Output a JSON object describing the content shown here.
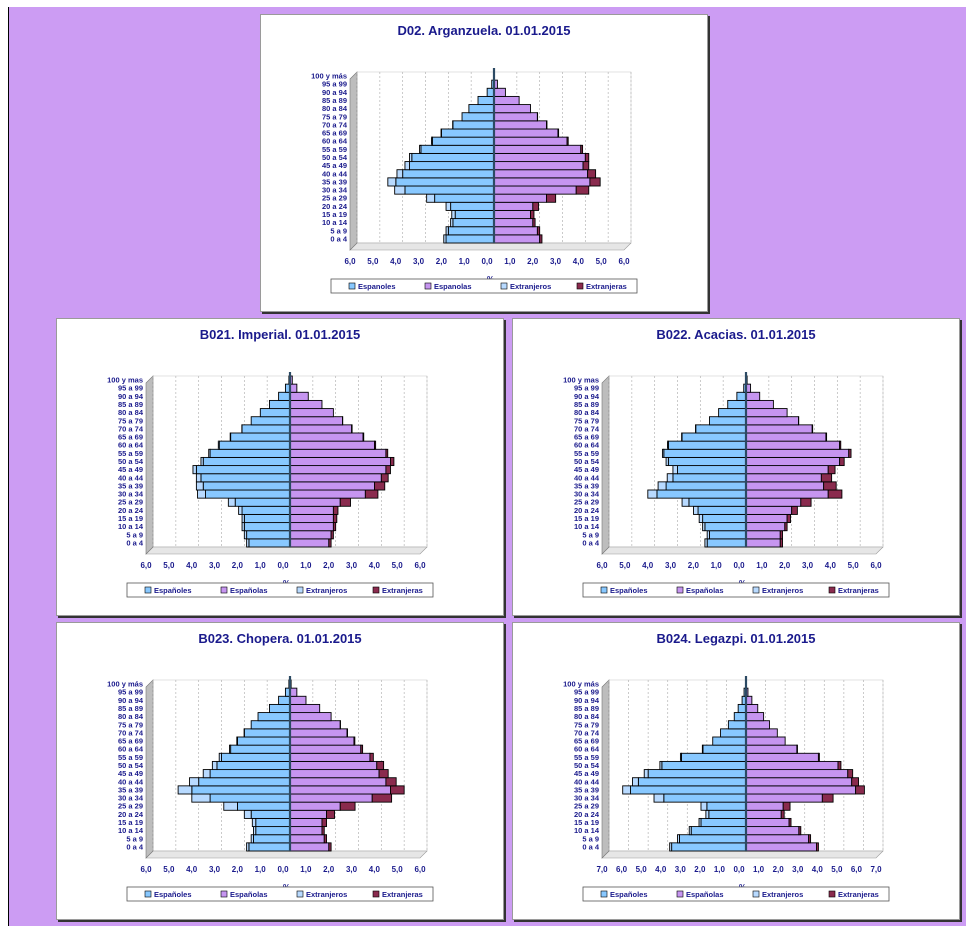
{
  "colors": {
    "espanoles": "#88c8ff",
    "espanolas": "#c695f0",
    "extranjeros": "#b8daff",
    "extranjeras": "#8a2b4e",
    "text": "#1a1a8c",
    "background": "#cc9cf3"
  },
  "chart_data": [
    {
      "type": "bar",
      "title": "D02. Arganzuela. 01.01.2015",
      "xlabel": "%",
      "xlim": [
        -6,
        6
      ],
      "tick_labels": [
        "6,0",
        "5,0",
        "4,0",
        "3,0",
        "2,0",
        "1,0",
        "0,0",
        "1,0",
        "2,0",
        "3,0",
        "4,0",
        "5,0",
        "6,0"
      ],
      "categories": [
        "0 a 4",
        "5 a 9",
        "10 a 14",
        "15 a 19",
        "20 a 24",
        "25 a 29",
        "30 a 34",
        "35 a 39",
        "40 a 44",
        "45 a 49",
        "50 a 54",
        "55 a 59",
        "60 a 64",
        "65 a 69",
        "70 a 74",
        "75 a 79",
        "80 a 84",
        "85 a 89",
        "90 a 94",
        "95 a 99",
        "100 y más"
      ],
      "series": [
        {
          "name": "Españoles",
          "values": [
            2.1,
            2.0,
            1.8,
            1.7,
            1.9,
            2.6,
            3.9,
            4.3,
            4.0,
            3.7,
            3.6,
            3.2,
            2.7,
            2.3,
            1.8,
            1.4,
            1.1,
            0.7,
            0.3,
            0.1,
            0.0
          ]
        },
        {
          "name": "Españolas",
          "values": [
            2.0,
            1.9,
            1.7,
            1.6,
            1.7,
            2.3,
            3.6,
            4.2,
            4.1,
            3.9,
            4.0,
            3.8,
            3.2,
            2.8,
            2.3,
            1.9,
            1.6,
            1.1,
            0.5,
            0.15,
            0.02
          ]
        },
        {
          "name": "Extranjeros",
          "values": [
            0.1,
            0.1,
            0.1,
            0.15,
            0.2,
            0.35,
            0.45,
            0.35,
            0.25,
            0.2,
            0.1,
            0.06,
            0.04,
            0.02,
            0.01,
            0.0,
            0.0,
            0.0,
            0.0,
            0.0,
            0.0
          ]
        },
        {
          "name": "Extranjeras",
          "values": [
            0.1,
            0.1,
            0.1,
            0.15,
            0.25,
            0.4,
            0.55,
            0.45,
            0.35,
            0.25,
            0.15,
            0.08,
            0.05,
            0.03,
            0.02,
            0.01,
            0.0,
            0.0,
            0.0,
            0.0,
            0.0
          ]
        }
      ],
      "category_labels": [
        "0 a 4",
        "5 a 9",
        "10 a 14",
        "15 a 19",
        "20 a 24",
        "25 a 29",
        "30 a 34",
        "35 a 39",
        "40 a 44",
        "45 a 49",
        "50 a 54",
        "55 a 59",
        "60 a 64",
        "65 a 69",
        "70 a 74",
        "75 a 79",
        "80 a 84",
        "85 a 89",
        "90 a 94",
        "95 a 99",
        "100 y más"
      ],
      "legend": [
        "Espanoles",
        "Espanolas",
        "Extranjeros",
        "Extranjeras"
      ]
    },
    {
      "type": "bar",
      "title": "B021. Imperial. 01.01.2015",
      "xlabel": "%",
      "xlim": [
        -6,
        6
      ],
      "tick_labels": [
        "6,0",
        "5,0",
        "4,0",
        "3,0",
        "2,0",
        "1,0",
        "0,0",
        "1,0",
        "2,0",
        "3,0",
        "4,0",
        "5,0",
        "6,0"
      ],
      "categories": [
        "0 a 4",
        "5 a 9",
        "10 a 14",
        "15 a 19",
        "20 a 24",
        "25 a 29",
        "30 a 34",
        "35 a 39",
        "40 a 44",
        "45 a 49",
        "50 a 54",
        "55 a 59",
        "60 a 64",
        "65 a 69",
        "70 a 74",
        "75 a 79",
        "80 a 84",
        "85 a 89",
        "90 a 94",
        "95 a 99",
        "100 y más"
      ],
      "series": [
        {
          "name": "Españoles",
          "values": [
            1.8,
            1.9,
            2.0,
            2.0,
            2.1,
            2.4,
            3.7,
            3.8,
            3.9,
            4.1,
            3.8,
            3.5,
            3.1,
            2.6,
            2.1,
            1.7,
            1.3,
            0.9,
            0.5,
            0.2,
            0.05
          ]
        },
        {
          "name": "Españolas",
          "values": [
            1.7,
            1.8,
            1.9,
            1.9,
            1.9,
            2.2,
            3.3,
            3.7,
            4.0,
            4.2,
            4.4,
            4.2,
            3.7,
            3.2,
            2.7,
            2.3,
            1.9,
            1.4,
            0.8,
            0.3,
            0.1
          ]
        },
        {
          "name": "Extranjeros",
          "values": [
            0.1,
            0.1,
            0.1,
            0.1,
            0.15,
            0.3,
            0.35,
            0.3,
            0.2,
            0.15,
            0.1,
            0.06,
            0.04,
            0.02,
            0.01,
            0.0,
            0.0,
            0.0,
            0.0,
            0.0,
            0.0
          ]
        },
        {
          "name": "Extranjeras",
          "values": [
            0.1,
            0.1,
            0.1,
            0.15,
            0.2,
            0.45,
            0.55,
            0.45,
            0.3,
            0.2,
            0.15,
            0.08,
            0.05,
            0.03,
            0.02,
            0.01,
            0.0,
            0.0,
            0.0,
            0.0,
            0.0
          ]
        }
      ],
      "category_labels": [
        "0 a 4",
        "5 a 9",
        "10 a 14",
        "15 a 19",
        "20 a 24",
        "25 a 29",
        "30 a 34",
        "35 a 39",
        "40 a 44",
        "45 a 49",
        "50 a 54",
        "55 a 59",
        "60 a 64",
        "65 a 69",
        "70 a 74",
        "75 a 79",
        "80 a 84",
        "85 a 89",
        "90 a 94",
        "95 a 99",
        "100 y mas"
      ],
      "legend": [
        "Españoles",
        "Españolas",
        "Extranjeros",
        "Extranjeras"
      ]
    },
    {
      "type": "bar",
      "title": "B022. Acacias. 01.01.2015",
      "xlabel": "%",
      "xlim": [
        -6,
        6
      ],
      "tick_labels": [
        "6,0",
        "5,0",
        "4,0",
        "3,0",
        "2,0",
        "1,0",
        "0,0",
        "1,0",
        "2,0",
        "3,0",
        "4,0",
        "5,0",
        "6,0"
      ],
      "categories": [
        "0 a 4",
        "5 a 9",
        "10 a 14",
        "15 a 19",
        "20 a 24",
        "25 a 29",
        "30 a 34",
        "35 a 39",
        "40 a 44",
        "45 a 49",
        "50 a 54",
        "55 a 59",
        "60 a 64",
        "65 a 69",
        "70 a 74",
        "75 a 79",
        "80 a 84",
        "85 a 89",
        "90 a 94",
        "95 a 99",
        "100 y más"
      ],
      "series": [
        {
          "name": "Españoles",
          "values": [
            1.7,
            1.6,
            1.8,
            1.9,
            2.1,
            2.5,
            3.9,
            3.5,
            3.2,
            3.0,
            3.4,
            3.6,
            3.4,
            2.8,
            2.2,
            1.6,
            1.2,
            0.8,
            0.4,
            0.1,
            0.02
          ]
        },
        {
          "name": "Españolas",
          "values": [
            1.5,
            1.5,
            1.7,
            1.8,
            2.0,
            2.4,
            3.6,
            3.4,
            3.3,
            3.6,
            4.1,
            4.5,
            4.1,
            3.5,
            2.9,
            2.3,
            1.8,
            1.2,
            0.6,
            0.2,
            0.05
          ]
        },
        {
          "name": "Extranjeros",
          "values": [
            0.1,
            0.1,
            0.1,
            0.15,
            0.2,
            0.3,
            0.4,
            0.35,
            0.25,
            0.2,
            0.1,
            0.06,
            0.04,
            0.02,
            0.01,
            0.0,
            0.0,
            0.0,
            0.0,
            0.0,
            0.0
          ]
        },
        {
          "name": "Extranjeras",
          "values": [
            0.1,
            0.1,
            0.1,
            0.15,
            0.25,
            0.45,
            0.6,
            0.55,
            0.45,
            0.3,
            0.2,
            0.1,
            0.05,
            0.03,
            0.02,
            0.01,
            0.0,
            0.0,
            0.0,
            0.0,
            0.0
          ]
        }
      ],
      "category_labels": [
        "0 a 4",
        "5 a 9",
        "10 a 14",
        "15 a 19",
        "20 a 24",
        "25 a 29",
        "30 a 34",
        "35 a 39",
        "40 a 44",
        "45 a 49",
        "50 a 54",
        "55 a 59",
        "60 a 64",
        "65 a 69",
        "70 a 74",
        "75 a 79",
        "80 a 84",
        "85 a 89",
        "90 a 94",
        "95 a 99",
        "100 y mas"
      ],
      "legend": [
        "Españoles",
        "Españolas",
        "Extranjeros",
        "Extranjeras"
      ]
    },
    {
      "type": "bar",
      "title": "B023. Chopera. 01.01.2015",
      "xlabel": "%",
      "xlim": [
        -6,
        6
      ],
      "tick_labels": [
        "6,0",
        "5,0",
        "4,0",
        "3,0",
        "2,0",
        "1,0",
        "0,0",
        "1,0",
        "2,0",
        "3,0",
        "4,0",
        "5,0",
        "6,0"
      ],
      "categories": [
        "0 a 4",
        "5 a 9",
        "10 a 14",
        "15 a 19",
        "20 a 24",
        "25 a 29",
        "30 a 34",
        "35 a 39",
        "40 a 44",
        "45 a 49",
        "50 a 54",
        "55 a 59",
        "60 a 64",
        "65 a 69",
        "70 a 74",
        "75 a 79",
        "80 a 84",
        "85 a 89",
        "90 a 94",
        "95 a 99",
        "100 y más"
      ],
      "series": [
        {
          "name": "Españoles",
          "values": [
            1.8,
            1.6,
            1.5,
            1.5,
            1.7,
            2.3,
            3.5,
            4.3,
            4.0,
            3.5,
            3.2,
            3.0,
            2.6,
            2.3,
            2.0,
            1.7,
            1.4,
            0.9,
            0.5,
            0.2,
            0.05
          ]
        },
        {
          "name": "Españolas",
          "values": [
            1.7,
            1.5,
            1.4,
            1.4,
            1.6,
            2.2,
            3.6,
            4.4,
            4.2,
            3.9,
            3.8,
            3.5,
            3.1,
            2.8,
            2.5,
            2.2,
            1.8,
            1.3,
            0.7,
            0.3,
            0.05
          ]
        },
        {
          "name": "Extranjeros",
          "values": [
            0.1,
            0.1,
            0.1,
            0.15,
            0.3,
            0.6,
            0.8,
            0.6,
            0.4,
            0.3,
            0.2,
            0.1,
            0.05,
            0.03,
            0.01,
            0.0,
            0.0,
            0.0,
            0.0,
            0.0,
            0.0
          ]
        },
        {
          "name": "Extranjeras",
          "values": [
            0.1,
            0.1,
            0.1,
            0.2,
            0.35,
            0.65,
            0.85,
            0.6,
            0.45,
            0.4,
            0.3,
            0.15,
            0.08,
            0.04,
            0.02,
            0.01,
            0.0,
            0.0,
            0.0,
            0.0,
            0.0
          ]
        }
      ],
      "category_labels": [
        "0 a 4",
        "5 a 9",
        "10 a 14",
        "15 a 19",
        "20 a 24",
        "25 a 29",
        "30 a 34",
        "35 a 39",
        "40 a 44",
        "45 a 49",
        "50 a 54",
        "55 a 59",
        "60 a 64",
        "65 a 69",
        "70 a 74",
        "75 a 79",
        "80 a 84",
        "85 a 89",
        "90 a 94",
        "95 a 99",
        "100 y más"
      ],
      "legend": [
        "Españoles",
        "Españolas",
        "Extranjeros",
        "Extranjeras"
      ]
    },
    {
      "type": "bar",
      "title": "B024. Legazpi. 01.01.2015",
      "xlabel": "%",
      "xlim": [
        -7,
        7
      ],
      "tick_labels": [
        "7,0",
        "6,0",
        "5,0",
        "4,0",
        "3,0",
        "2,0",
        "1,0",
        "0,0",
        "1,0",
        "2,0",
        "3,0",
        "4,0",
        "5,0",
        "6,0",
        "7,0"
      ],
      "categories": [
        "0 a 4",
        "5 a 9",
        "10 a 14",
        "15 a 19",
        "20 a 24",
        "25 a 29",
        "30 a 34",
        "35 a 39",
        "40 a 44",
        "45 a 49",
        "50 a 54",
        "55 a 59",
        "60 a 64",
        "65 a 69",
        "70 a 74",
        "75 a 79",
        "80 a 84",
        "85 a 89",
        "90 a 94",
        "95 a 99",
        "100 y más"
      ],
      "series": [
        {
          "name": "Españoles",
          "values": [
            3.8,
            3.4,
            2.8,
            2.3,
            1.9,
            2.0,
            4.2,
            5.9,
            5.5,
            5.0,
            4.3,
            3.3,
            2.2,
            1.7,
            1.3,
            0.9,
            0.6,
            0.4,
            0.2,
            0.1,
            0.02
          ]
        },
        {
          "name": "Españolas",
          "values": [
            3.6,
            3.2,
            2.7,
            2.2,
            1.8,
            1.9,
            3.9,
            5.6,
            5.4,
            5.2,
            4.7,
            3.7,
            2.6,
            2.0,
            1.6,
            1.2,
            0.9,
            0.6,
            0.3,
            0.1,
            0.02
          ]
        },
        {
          "name": "Extranjeros",
          "values": [
            0.1,
            0.1,
            0.1,
            0.1,
            0.15,
            0.3,
            0.5,
            0.4,
            0.3,
            0.2,
            0.1,
            0.05,
            0.03,
            0.01,
            0.0,
            0.0,
            0.0,
            0.0,
            0.0,
            0.0,
            0.0
          ]
        },
        {
          "name": "Extranjeras",
          "values": [
            0.1,
            0.1,
            0.1,
            0.1,
            0.15,
            0.35,
            0.55,
            0.45,
            0.35,
            0.25,
            0.15,
            0.05,
            0.03,
            0.01,
            0.0,
            0.0,
            0.0,
            0.0,
            0.0,
            0.0,
            0.0
          ]
        }
      ],
      "category_labels": [
        "0 a 4",
        "5 a 9",
        "10 a 14",
        "15 a 19",
        "20 a 24",
        "25 a 29",
        "30 a 34",
        "35 a 39",
        "40 a 44",
        "45 a 49",
        "50 a 54",
        "55 a 59",
        "60 a 64",
        "65 a 69",
        "70 a 74",
        "75 a 79",
        "80 a 84",
        "85 a 89",
        "90 a 94",
        "95 a 99",
        "100 y más"
      ],
      "legend": [
        "Españoles",
        "Españolas",
        "Extranjeros",
        "Extranjeras"
      ]
    }
  ]
}
